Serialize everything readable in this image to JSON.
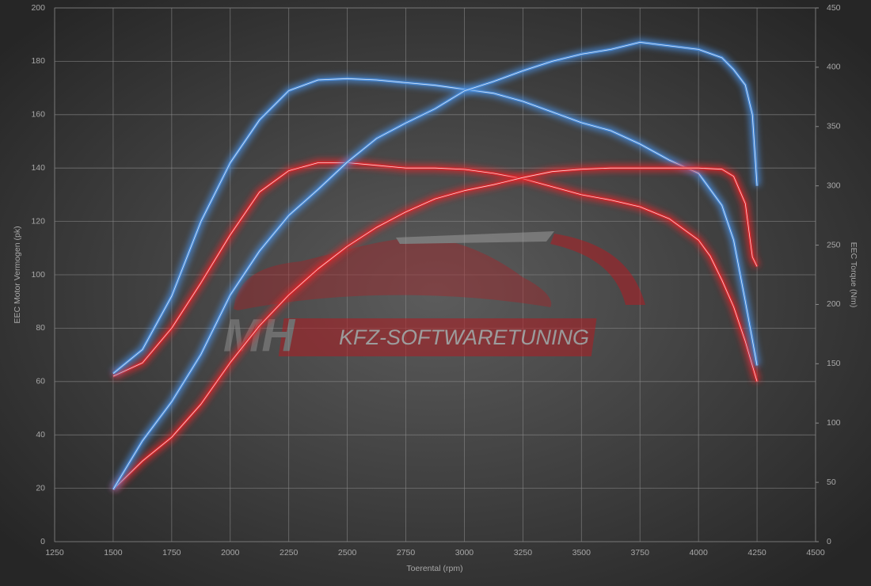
{
  "chart_data": {
    "type": "line",
    "xlabel": "Toerental (rpm)",
    "ylabel": "EEC Motor Vermogen (pk)",
    "y2label": "EEC Torque (Nm)",
    "watermark": {
      "brand": "MH",
      "text": "KFZ-SOFTWARETUNING"
    },
    "xlim": [
      1250,
      4500
    ],
    "xticks": [
      1250,
      1500,
      1750,
      2000,
      2250,
      2500,
      2750,
      3000,
      3250,
      3500,
      3750,
      4000,
      4250,
      4500
    ],
    "ylim": [
      0,
      200
    ],
    "yticks": [
      0,
      20,
      40,
      60,
      80,
      100,
      120,
      140,
      160,
      180,
      200
    ],
    "y2lim": [
      0,
      450
    ],
    "y2ticks": [
      0,
      50,
      100,
      150,
      200,
      250,
      300,
      350,
      400,
      450
    ],
    "grid": true,
    "series": [
      {
        "color": "#e3262c",
        "axis": "y",
        "x": [
          1500,
          1625,
          1750,
          1875,
          2000,
          2125,
          2250,
          2375,
          2500,
          2625,
          2750,
          2875,
          3000,
          3125,
          3250,
          3375,
          3500,
          3625,
          3750,
          3875,
          4000,
          4050,
          4100,
          4150,
          4200,
          4250
        ],
        "values": [
          62,
          67,
          80,
          97,
          115,
          131,
          139,
          142,
          142,
          141,
          140,
          140,
          139.5,
          138,
          136,
          133,
          130,
          128,
          125.5,
          121,
          113,
          107,
          98,
          88,
          75,
          60
        ]
      },
      {
        "color": "#4a8fe0",
        "axis": "y",
        "x": [
          1500,
          1625,
          1750,
          1875,
          2000,
          2125,
          2250,
          2375,
          2500,
          2625,
          2750,
          2875,
          3000,
          3125,
          3250,
          3375,
          3500,
          3625,
          3750,
          3875,
          4000,
          4100,
          4150,
          4200,
          4250
        ],
        "values": [
          63,
          72,
          92,
          120,
          142,
          158,
          169,
          173,
          173.5,
          173,
          172,
          171,
          169.5,
          168,
          165,
          161,
          157,
          154,
          149,
          143,
          138,
          126,
          113,
          90,
          66
        ]
      },
      {
        "color": "#e3262c",
        "axis": "y2",
        "x": [
          1500,
          1625,
          1750,
          1875,
          2000,
          2125,
          2250,
          2375,
          2500,
          2625,
          2750,
          2875,
          3000,
          3125,
          3250,
          3375,
          3500,
          3625,
          3750,
          3875,
          4000,
          4100,
          4150,
          4200,
          4230,
          4250
        ],
        "values": [
          44,
          68,
          88,
          116,
          151,
          182,
          208,
          230,
          249,
          265,
          278,
          289,
          296,
          301,
          307,
          312,
          314,
          315,
          315,
          315,
          315,
          314,
          308,
          285,
          240,
          232
        ]
      },
      {
        "color": "#4a8fe0",
        "axis": "y2",
        "x": [
          1500,
          1625,
          1750,
          1875,
          2000,
          2125,
          2250,
          2375,
          2500,
          2625,
          2750,
          2875,
          3000,
          3125,
          3250,
          3375,
          3500,
          3625,
          3750,
          3875,
          4000,
          4100,
          4150,
          4200,
          4230,
          4250
        ],
        "values": [
          44,
          85,
          118,
          158,
          208,
          245,
          275,
          297,
          320,
          340,
          353,
          365,
          380,
          388,
          397,
          405,
          411,
          415,
          421,
          418,
          415,
          408,
          398,
          385,
          360,
          300
        ]
      }
    ]
  }
}
